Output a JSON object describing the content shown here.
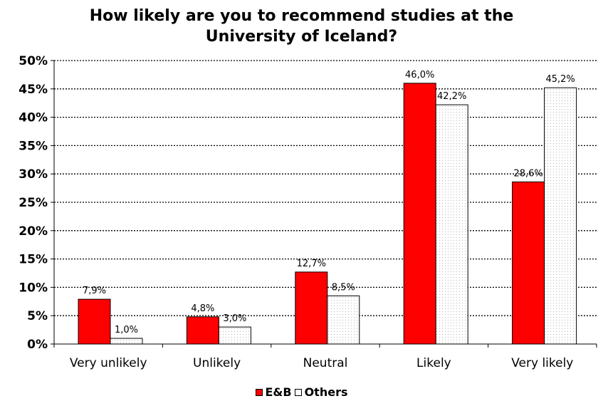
{
  "chart_data": {
    "type": "bar",
    "title": [
      "How likely are you to recommend studies at the",
      "University of Iceland?"
    ],
    "categories": [
      "Very unlikely",
      "Unlikely",
      "Neutral",
      "Likely",
      "Very likely"
    ],
    "series": [
      {
        "name": "E&B",
        "values": [
          7.9,
          4.8,
          12.7,
          46.0,
          28.6
        ],
        "labels": [
          "7,9%",
          "4,8%",
          "12,7%",
          "46,0%",
          "28,6%"
        ],
        "color": "#ff0000",
        "pattern": "solid"
      },
      {
        "name": "Others",
        "values": [
          1.0,
          3.0,
          8.5,
          42.2,
          45.2
        ],
        "labels": [
          "1,0%",
          "3,0%",
          "8,5%",
          "42,2%",
          "45,2%"
        ],
        "color": "#ffffff",
        "pattern": "dotted"
      }
    ],
    "ylim": [
      0,
      50
    ],
    "yticks": [
      0,
      5,
      10,
      15,
      20,
      25,
      30,
      35,
      40,
      45,
      50
    ],
    "ytick_labels": [
      "0%",
      "5%",
      "10%",
      "15%",
      "20%",
      "25%",
      "30%",
      "35%",
      "40%",
      "45%",
      "50%"
    ],
    "grid": "horizontal dotted",
    "legend_position": "bottom"
  }
}
